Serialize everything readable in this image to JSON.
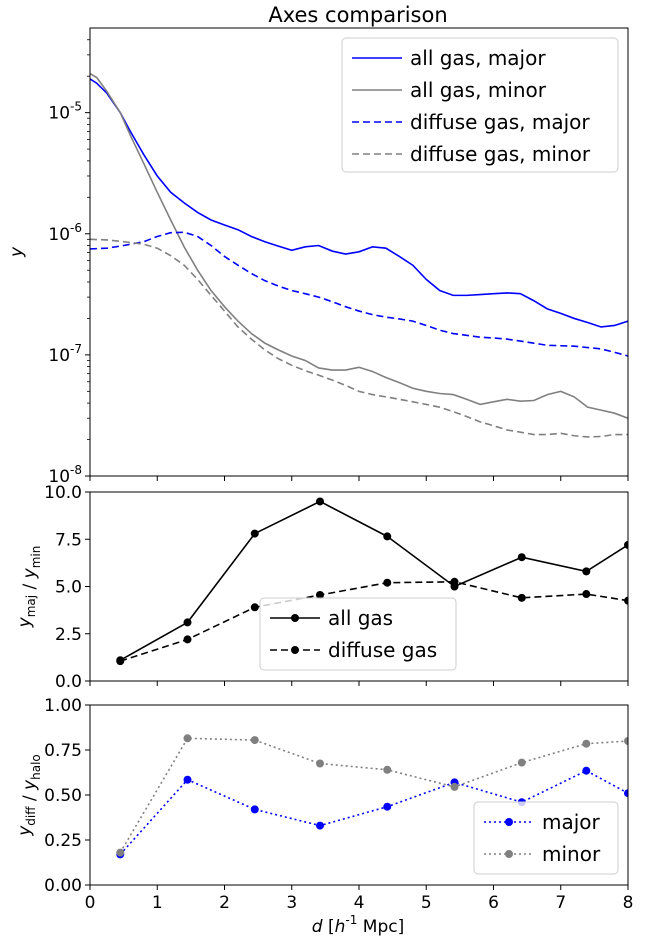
{
  "figure": {
    "title": "Axes comparison",
    "xlabel": "d [h⁻¹ Mpc]",
    "xlim": [
      0,
      8
    ],
    "xticks": [
      0,
      1,
      2,
      3,
      4,
      5,
      6,
      7,
      8
    ],
    "xtick_labels": [
      "0",
      "1",
      "2",
      "3",
      "4",
      "5",
      "6",
      "7",
      "8"
    ]
  },
  "chart_data": [
    {
      "type": "line",
      "title": "Axes comparison",
      "ylabel": "y",
      "yscale": "log",
      "ylim": [
        1e-08,
        5e-05
      ],
      "yticks": [
        1e-08,
        1e-07,
        1e-06,
        1e-05
      ],
      "ytick_labels": [
        "10⁻⁸",
        "10⁻⁷",
        "10⁻⁶",
        "10⁻⁵"
      ],
      "legend_position": "top-right",
      "series": [
        {
          "name": "all gas, major",
          "color": "#0000ff",
          "style": "solid",
          "x": [
            0,
            0.1,
            0.25,
            0.45,
            0.6,
            0.8,
            1.0,
            1.2,
            1.4,
            1.6,
            1.8,
            2.0,
            2.2,
            2.4,
            2.6,
            2.8,
            3.0,
            3.2,
            3.4,
            3.6,
            3.8,
            4.0,
            4.2,
            4.4,
            4.6,
            4.8,
            5.0,
            5.2,
            5.4,
            5.6,
            5.8,
            6.0,
            6.2,
            6.4,
            6.6,
            6.8,
            7.0,
            7.2,
            7.4,
            7.6,
            7.8,
            8.0
          ],
          "values": [
            1.9e-05,
            1.75e-05,
            1.45e-05,
            1e-05,
            7e-06,
            4.5e-06,
            3e-06,
            2.2e-06,
            1.8e-06,
            1.5e-06,
            1.3e-06,
            1.18e-06,
            1.08e-06,
            9.5e-07,
            8.6e-07,
            7.9e-07,
            7.3e-07,
            7.8e-07,
            8e-07,
            7.2e-07,
            6.8e-07,
            7.1e-07,
            7.8e-07,
            7.6e-07,
            6.5e-07,
            5.5e-07,
            4.2e-07,
            3.4e-07,
            3.1e-07,
            3.1e-07,
            3.15e-07,
            3.2e-07,
            3.25e-07,
            3.2e-07,
            2.8e-07,
            2.4e-07,
            2.2e-07,
            2e-07,
            1.85e-07,
            1.7e-07,
            1.75e-07,
            1.9e-07
          ]
        },
        {
          "name": "all gas, minor",
          "color": "#808080",
          "style": "solid",
          "x": [
            0,
            0.1,
            0.25,
            0.45,
            0.6,
            0.8,
            1.0,
            1.2,
            1.4,
            1.6,
            1.8,
            2.0,
            2.2,
            2.4,
            2.6,
            2.8,
            3.0,
            3.2,
            3.4,
            3.6,
            3.8,
            4.0,
            4.2,
            4.4,
            4.6,
            4.8,
            5.0,
            5.2,
            5.4,
            5.6,
            5.8,
            6.0,
            6.2,
            6.4,
            6.6,
            6.8,
            7.0,
            7.2,
            7.4,
            7.6,
            7.8,
            8.0
          ],
          "values": [
            2.1e-05,
            1.95e-05,
            1.5e-05,
            1e-05,
            6.5e-06,
            3.8e-06,
            2.2e-06,
            1.3e-06,
            7.8e-07,
            5e-07,
            3.4e-07,
            2.5e-07,
            1.9e-07,
            1.5e-07,
            1.25e-07,
            1.1e-07,
            9.8e-08,
            9e-08,
            7.8e-08,
            7.5e-08,
            7.5e-08,
            7.9e-08,
            7.3e-08,
            6.5e-08,
            5.9e-08,
            5.3e-08,
            5e-08,
            4.8e-08,
            4.7e-08,
            4.3e-08,
            3.9e-08,
            4.1e-08,
            4.3e-08,
            4.15e-08,
            4.2e-08,
            4.7e-08,
            5e-08,
            4.5e-08,
            3.7e-08,
            3.5e-08,
            3.3e-08,
            3e-08
          ]
        },
        {
          "name": "diffuse gas, major",
          "color": "#0000ff",
          "style": "dashed",
          "x": [
            0,
            0.25,
            0.5,
            0.8,
            1.0,
            1.2,
            1.4,
            1.6,
            1.8,
            2.0,
            2.2,
            2.4,
            2.6,
            2.8,
            3.0,
            3.2,
            3.4,
            3.6,
            3.8,
            4.0,
            4.2,
            4.4,
            4.6,
            4.8,
            5.0,
            5.2,
            5.4,
            5.6,
            5.8,
            6.0,
            6.2,
            6.4,
            6.6,
            6.8,
            7.0,
            7.2,
            7.4,
            7.6,
            7.8,
            8.0
          ],
          "values": [
            7.5e-07,
            7.6e-07,
            8e-07,
            8.6e-07,
            9.5e-07,
            1.02e-06,
            1.03e-06,
            9.5e-07,
            8e-07,
            6.5e-07,
            5.5e-07,
            4.7e-07,
            4.1e-07,
            3.7e-07,
            3.4e-07,
            3.2e-07,
            3e-07,
            2.75e-07,
            2.5e-07,
            2.3e-07,
            2.15e-07,
            2.05e-07,
            1.98e-07,
            1.9e-07,
            1.75e-07,
            1.6e-07,
            1.5e-07,
            1.45e-07,
            1.4e-07,
            1.38e-07,
            1.35e-07,
            1.3e-07,
            1.25e-07,
            1.2e-07,
            1.19e-07,
            1.18e-07,
            1.15e-07,
            1.12e-07,
            1.05e-07,
            9.8e-08
          ]
        },
        {
          "name": "diffuse gas, minor",
          "color": "#808080",
          "style": "dashed",
          "x": [
            0,
            0.25,
            0.5,
            0.8,
            1.0,
            1.2,
            1.4,
            1.6,
            1.8,
            2.0,
            2.2,
            2.4,
            2.6,
            2.8,
            3.0,
            3.2,
            3.4,
            3.6,
            3.8,
            4.0,
            4.2,
            4.4,
            4.6,
            4.8,
            5.0,
            5.2,
            5.4,
            5.6,
            5.8,
            6.0,
            6.2,
            6.4,
            6.6,
            6.8,
            7.0,
            7.2,
            7.4,
            7.6,
            7.8,
            8.0
          ],
          "values": [
            9e-07,
            8.9e-07,
            8.6e-07,
            8.2e-07,
            7.6e-07,
            6.6e-07,
            5.5e-07,
            4.2e-07,
            3.1e-07,
            2.3e-07,
            1.7e-07,
            1.35e-07,
            1.1e-07,
            9.3e-08,
            8.2e-08,
            7.4e-08,
            6.8e-08,
            6.2e-08,
            5.6e-08,
            5e-08,
            4.7e-08,
            4.5e-08,
            4.3e-08,
            4.1e-08,
            3.9e-08,
            3.7e-08,
            3.4e-08,
            3.1e-08,
            2.8e-08,
            2.6e-08,
            2.4e-08,
            2.3e-08,
            2.2e-08,
            2.2e-08,
            2.25e-08,
            2.15e-08,
            2.1e-08,
            2.12e-08,
            2.2e-08,
            2.2e-08
          ]
        }
      ]
    },
    {
      "type": "line",
      "ylabel": "y_maj / y_min",
      "ylim": [
        0,
        10
      ],
      "yticks": [
        0,
        2.5,
        5,
        7.5,
        10
      ],
      "ytick_labels": [
        "0.0",
        "2.5",
        "5.0",
        "7.5",
        "10.0"
      ],
      "legend_position": "lower-center",
      "series": [
        {
          "name": "all gas",
          "color": "#000000",
          "style": "solid",
          "marker": "circle",
          "x": [
            0.45,
            1.45,
            2.45,
            3.42,
            4.42,
            5.42,
            6.42,
            7.38,
            8.0
          ],
          "values": [
            1.1,
            3.1,
            7.8,
            9.5,
            7.65,
            5.0,
            6.55,
            5.8,
            7.2
          ]
        },
        {
          "name": "diffuse gas",
          "color": "#000000",
          "style": "dashed",
          "marker": "circle",
          "x": [
            0.45,
            1.45,
            2.45,
            3.42,
            4.42,
            5.42,
            6.42,
            7.38,
            8.0
          ],
          "values": [
            1.05,
            2.2,
            3.9,
            4.55,
            5.2,
            5.25,
            4.4,
            4.6,
            4.25
          ]
        }
      ]
    },
    {
      "type": "line",
      "ylabel": "y_diff / y_halo",
      "ylim": [
        0,
        1
      ],
      "yticks": [
        0,
        0.25,
        0.5,
        0.75,
        1.0
      ],
      "ytick_labels": [
        "0.00",
        "0.25",
        "0.50",
        "0.75",
        "1.00"
      ],
      "legend_position": "lower-right",
      "series": [
        {
          "name": "major",
          "color": "#0000ff",
          "style": "dotted",
          "marker": "circle",
          "x": [
            0.45,
            1.45,
            2.45,
            3.42,
            4.42,
            5.42,
            6.42,
            7.38,
            8.0
          ],
          "values": [
            0.17,
            0.585,
            0.42,
            0.33,
            0.435,
            0.57,
            0.46,
            0.635,
            0.51
          ]
        },
        {
          "name": "minor",
          "color": "#808080",
          "style": "dotted",
          "marker": "circle",
          "x": [
            0.45,
            1.45,
            2.45,
            3.42,
            4.42,
            5.42,
            6.42,
            7.38,
            8.0
          ],
          "values": [
            0.18,
            0.815,
            0.805,
            0.675,
            0.64,
            0.545,
            0.68,
            0.785,
            0.8
          ]
        }
      ]
    }
  ]
}
